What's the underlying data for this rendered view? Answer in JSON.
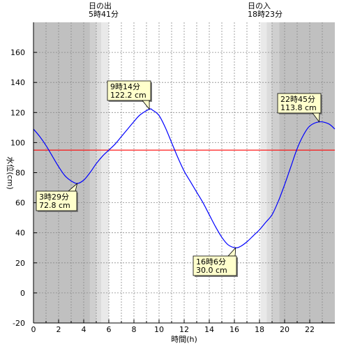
{
  "chart_data": {
    "type": "line",
    "xlabel": "時間(h)",
    "ylabel": "水位(cm)",
    "xlim": [
      0,
      24
    ],
    "ylim": [
      -20,
      180
    ],
    "xticks": [
      0,
      2,
      4,
      6,
      8,
      10,
      12,
      14,
      16,
      18,
      20,
      22
    ],
    "yticks": [
      -20,
      0,
      20,
      40,
      60,
      80,
      100,
      120,
      140,
      160
    ],
    "grid": true,
    "sunrise": {
      "label": "日の出",
      "time": "5時41分",
      "hour": 5.683
    },
    "sunset": {
      "label": "日の入",
      "time": "18時23分",
      "hour": 18.383
    },
    "reference_line": {
      "value": 95,
      "color": "#ff0000"
    },
    "series": [
      {
        "color": "#0000ff",
        "x": [
          0,
          0.5,
          1,
          1.5,
          2,
          2.5,
          3,
          3.48,
          4,
          4.5,
          5,
          5.5,
          6,
          6.5,
          7,
          7.5,
          8,
          8.5,
          9.23,
          9.5,
          10,
          10.5,
          11,
          11.5,
          12,
          12.5,
          13,
          13.5,
          14,
          14.5,
          15,
          15.5,
          16.1,
          16.5,
          17,
          17.5,
          18,
          18.5,
          19,
          19.5,
          20,
          20.5,
          21,
          21.5,
          22,
          22.75,
          23.5,
          24
        ],
        "y": [
          109,
          104,
          98,
          91,
          84,
          78,
          74.5,
          72.8,
          75,
          80,
          86,
          91,
          95,
          99,
          104,
          109,
          114,
          118.5,
          122.2,
          121.5,
          118,
          110,
          100,
          90,
          81,
          74,
          67,
          60,
          52,
          44,
          37,
          32,
          30.0,
          31,
          34,
          38,
          42,
          47,
          52,
          61,
          72,
          84,
          96,
          105,
          111,
          113.8,
          112.5,
          109
        ]
      }
    ],
    "annotations": [
      {
        "line1": "3時29分",
        "line2": "72.8 cm",
        "x": 3.48,
        "y": 72.8
      },
      {
        "line1": "9時14分",
        "line2": "122.2 cm",
        "x": 9.23,
        "y": 122.2
      },
      {
        "line1": "16時6分",
        "line2": "30.0 cm",
        "x": 16.1,
        "y": 30.0
      },
      {
        "line1": "22時45分",
        "line2": "113.8 cm",
        "x": 22.75,
        "y": 113.8
      }
    ]
  }
}
